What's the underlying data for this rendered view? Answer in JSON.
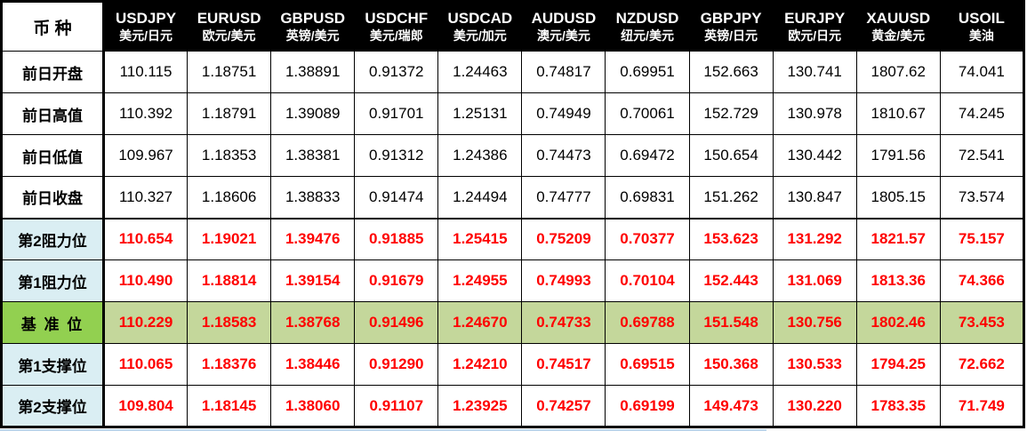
{
  "colors": {
    "header_bg": "#000000",
    "header_text": "#ffffff",
    "grid": "#000000",
    "value_red": "#ff0000",
    "label_blue_bg": "#daeef3",
    "pivot_label_bg": "#92d050",
    "pivot_row_bg": "#c4d79b"
  },
  "chart_data": {
    "type": "table",
    "corner_label": "币 种",
    "columns": [
      {
        "code": "USDJPY",
        "pair": "美元/日元"
      },
      {
        "code": "EURUSD",
        "pair": "欧元/美元"
      },
      {
        "code": "GBPUSD",
        "pair": "英镑/美元"
      },
      {
        "code": "USDCHF",
        "pair": "美元/瑞郎"
      },
      {
        "code": "USDCAD",
        "pair": "美元/加元"
      },
      {
        "code": "AUDUSD",
        "pair": "澳元/美元"
      },
      {
        "code": "NZDUSD",
        "pair": "纽元/美元"
      },
      {
        "code": "GBPJPY",
        "pair": "英镑/日元"
      },
      {
        "code": "EURJPY",
        "pair": "欧元/日元"
      },
      {
        "code": "XAUUSD",
        "pair": "黄金/美元"
      },
      {
        "code": "USOIL",
        "pair": "美油"
      }
    ],
    "rows": [
      {
        "label": "前日开盘",
        "style": "normal",
        "values": [
          "110.115",
          "1.18751",
          "1.38891",
          "0.91372",
          "1.24463",
          "0.74817",
          "0.69951",
          "152.663",
          "130.741",
          "1807.62",
          "74.041"
        ]
      },
      {
        "label": "前日高值",
        "style": "normal",
        "values": [
          "110.392",
          "1.18791",
          "1.39089",
          "0.91701",
          "1.25131",
          "0.74949",
          "0.70061",
          "152.729",
          "130.978",
          "1810.67",
          "74.245"
        ]
      },
      {
        "label": "前日低值",
        "style": "normal",
        "values": [
          "109.967",
          "1.18353",
          "1.38381",
          "0.91312",
          "1.24386",
          "0.74473",
          "0.69472",
          "150.654",
          "130.442",
          "1791.56",
          "72.541"
        ]
      },
      {
        "label": "前日收盘",
        "style": "normal",
        "values": [
          "110.327",
          "1.18606",
          "1.38833",
          "0.91474",
          "1.24494",
          "0.74777",
          "0.69831",
          "151.262",
          "130.847",
          "1805.15",
          "73.574"
        ]
      },
      {
        "label": "第2阻力位",
        "style": "level",
        "values": [
          "110.654",
          "1.19021",
          "1.39476",
          "0.91885",
          "1.25415",
          "0.75209",
          "0.70377",
          "153.623",
          "131.292",
          "1821.57",
          "75.157"
        ]
      },
      {
        "label": "第1阻力位",
        "style": "level",
        "values": [
          "110.490",
          "1.18814",
          "1.39154",
          "0.91679",
          "1.24955",
          "0.74993",
          "0.70104",
          "152.443",
          "131.069",
          "1813.36",
          "74.366"
        ]
      },
      {
        "label": "基 准 位",
        "style": "pivot",
        "values": [
          "110.229",
          "1.18583",
          "1.38768",
          "0.91496",
          "1.24670",
          "0.74733",
          "0.69788",
          "151.548",
          "130.756",
          "1802.46",
          "73.453"
        ]
      },
      {
        "label": "第1支撑位",
        "style": "level",
        "values": [
          "110.065",
          "1.18376",
          "1.38446",
          "0.91290",
          "1.24210",
          "0.74517",
          "0.69515",
          "150.368",
          "130.533",
          "1794.25",
          "72.662"
        ]
      },
      {
        "label": "第2支撑位",
        "style": "level",
        "values": [
          "109.804",
          "1.18145",
          "1.38060",
          "0.91107",
          "1.23925",
          "0.74257",
          "0.69199",
          "149.473",
          "130.220",
          "1783.35",
          "71.749"
        ]
      }
    ]
  }
}
